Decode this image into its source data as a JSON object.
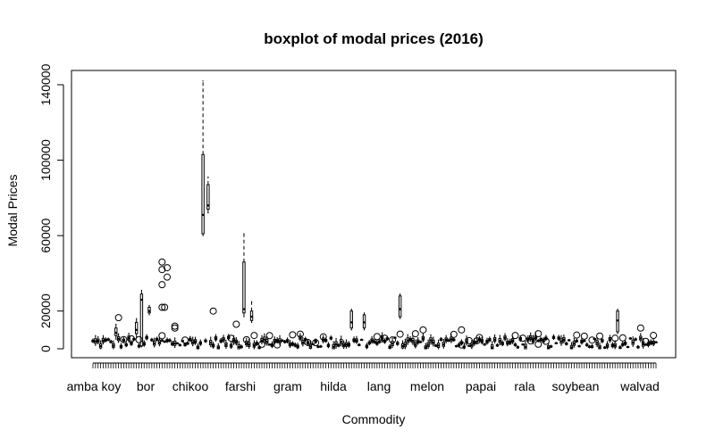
{
  "chart_data": {
    "type": "boxplot",
    "title": "boxplot of modal prices (2016)",
    "xlabel": "Commodity",
    "ylabel": "Modal Prices",
    "ylim": [
      0,
      145000
    ],
    "y_ticks": [
      0,
      20000,
      60000,
      100000,
      140000
    ],
    "category_labels": [
      "amba koy",
      "bor",
      "chikoo",
      "farshi",
      "gram",
      "hilda",
      "lang",
      "melon",
      "papai",
      "rala",
      "soybean",
      "walvad"
    ],
    "notable_boxes": [
      {
        "position": 10,
        "q1": 7000,
        "median": 8500,
        "q3": 11000,
        "whisker_low": 5000,
        "whisker_high": 13000
      },
      {
        "position": 18,
        "q1": 8000,
        "median": 10000,
        "q3": 14000,
        "whisker_low": 6000,
        "whisker_high": 16000
      },
      {
        "position": 20,
        "q1": 1500,
        "median": 26000,
        "q3": 29000,
        "whisker_low": 1000,
        "whisker_high": 31000
      },
      {
        "position": 23,
        "q1": 19000,
        "median": 20000,
        "q3": 22000,
        "whisker_low": 18000,
        "whisker_high": 23000
      },
      {
        "position": 44,
        "q1": 61000,
        "median": 71000,
        "q3": 103000,
        "whisker_low": 60000,
        "whisker_high": 142000
      },
      {
        "position": 46,
        "q1": 74000,
        "median": 76000,
        "q3": 87000,
        "whisker_low": 72000,
        "whisker_high": 91000
      },
      {
        "position": 60,
        "q1": 19000,
        "median": 21000,
        "q3": 46000,
        "whisker_low": 17000,
        "whisker_high": 61000
      },
      {
        "position": 63,
        "q1": 15000,
        "median": 17000,
        "q3": 20000,
        "whisker_low": 14000,
        "whisker_high": 25000
      },
      {
        "position": 102,
        "q1": 11000,
        "median": 14000,
        "q3": 20000,
        "whisker_low": 10000,
        "whisker_high": 21000
      },
      {
        "position": 107,
        "q1": 11000,
        "median": 14000,
        "q3": 18000,
        "whisker_low": 10000,
        "whisker_high": 19000
      },
      {
        "position": 121,
        "q1": 17000,
        "median": 21000,
        "q3": 28000,
        "whisker_low": 16000,
        "whisker_high": 29000
      },
      {
        "position": 206,
        "q1": 9000,
        "median": 15000,
        "q3": 20000,
        "whisker_low": 8000,
        "whisker_high": 21000
      }
    ],
    "notable_outliers": [
      {
        "position": 11,
        "value": 16500
      },
      {
        "position": 33,
        "value": 12000
      },
      {
        "position": 33,
        "value": 11000
      },
      {
        "position": 28,
        "value": 46000
      },
      {
        "position": 28,
        "value": 42000
      },
      {
        "position": 28,
        "value": 22000
      },
      {
        "position": 29,
        "value": 22000
      },
      {
        "position": 30,
        "value": 43000
      },
      {
        "position": 30,
        "value": 38000
      },
      {
        "position": 28,
        "value": 34000
      },
      {
        "position": 48,
        "value": 20000
      },
      {
        "position": 57,
        "value": 13000
      },
      {
        "position": 130,
        "value": 10000
      },
      {
        "position": 127,
        "value": 8000
      },
      {
        "position": 145,
        "value": 10000
      },
      {
        "position": 152,
        "value": 6000
      },
      {
        "position": 175,
        "value": 8000
      },
      {
        "position": 215,
        "value": 11000
      }
    ]
  }
}
